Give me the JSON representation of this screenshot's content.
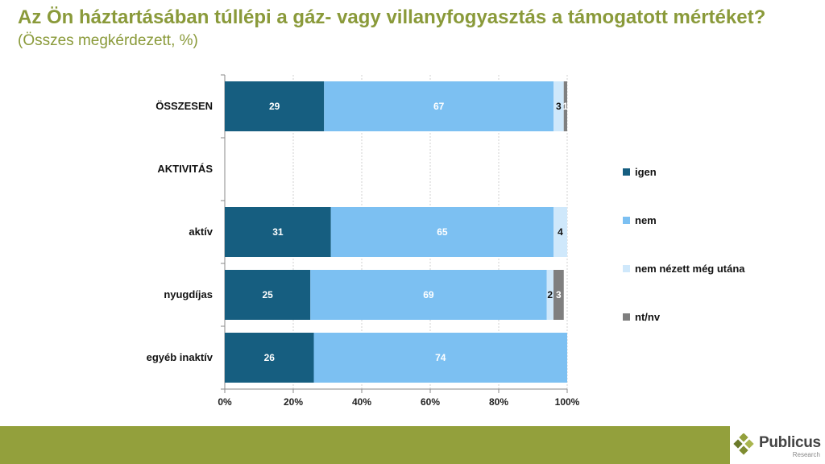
{
  "header": {
    "title": "Az Ön háztartásában túllépi a gáz- vagy villanyfogyasztás a támogatott mértéket?",
    "subtitle": "(Összes megkérdezett, %)"
  },
  "brand": {
    "name": "Publicus",
    "sub": "Research",
    "accent": "#93a03c"
  },
  "chart_data": {
    "type": "bar",
    "orientation": "horizontal",
    "stacked": true,
    "categories": [
      "ÖSSZESEN",
      "AKTIVITÁS",
      "aktív",
      "nyugdíjas",
      "egyéb inaktív"
    ],
    "series": [
      {
        "name": "igen",
        "color": "#165e80",
        "values": [
          29,
          null,
          31,
          25,
          26
        ]
      },
      {
        "name": "nem",
        "color": "#7cc0f2",
        "values": [
          67,
          null,
          65,
          69,
          74
        ]
      },
      {
        "name": "nem nézett még utána",
        "color": "#cfe8fb",
        "values": [
          3,
          null,
          4,
          2,
          null
        ]
      },
      {
        "name": "nt/nv",
        "color": "#7f7f7f",
        "values": [
          1,
          null,
          null,
          3,
          null
        ]
      }
    ],
    "xlim": [
      0,
      100
    ],
    "xticks": [
      "0%",
      "20%",
      "40%",
      "60%",
      "80%",
      "100%"
    ],
    "grid": true,
    "legend_position": "right"
  }
}
